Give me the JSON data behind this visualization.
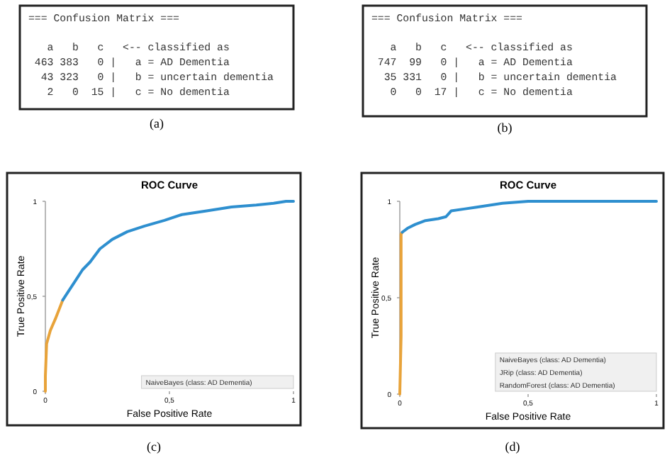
{
  "chart_data": [
    {
      "type": "other",
      "annotations": [
        "=== Confusion Matrix ===",
        "   a   b   c   <-- classified as",
        " 463 383   0 |   a = AD Dementia",
        "  43 323   0 |   b = uncertain dementia",
        "   2   0  15 |   c = No dementia"
      ],
      "subtitle": "(a)"
    },
    {
      "type": "other",
      "annotations": [
        "=== Confusion Matrix ===",
        "   a   b   c   <-- classified as",
        " 747  99   0 |   a = AD Dementia",
        "  35 331   0 |   b = uncertain dementia",
        "   0   0  17 |   c = No dementia"
      ],
      "subtitle": "(b)"
    },
    {
      "type": "line",
      "title": "ROC Curve",
      "subtitle": "(c)",
      "xlabel": "False Positive Rate",
      "ylabel": "True Positive Rate",
      "xlim": [
        0,
        1
      ],
      "ylim": [
        0,
        1
      ],
      "xticks": [
        {
          "value": 0,
          "label": "0"
        },
        {
          "value": 0.5,
          "label": "0,5"
        },
        {
          "value": 1,
          "label": "1"
        }
      ],
      "yticks": [
        {
          "value": 0,
          "label": "0"
        },
        {
          "value": 0.5,
          "label": "0,5"
        },
        {
          "value": 1,
          "label": "1"
        }
      ],
      "annotations": [
        "NaiveBayes (class: AD Dementia)"
      ],
      "series": [
        {
          "color": "#e8a33a",
          "x": [
            0,
            0,
            0.005,
            0.02,
            0.04,
            0.07
          ],
          "values": [
            0,
            0.08,
            0.25,
            0.32,
            0.38,
            0.48
          ]
        },
        {
          "color": "#2e8fcf",
          "x": [
            0.07,
            0.09,
            0.12,
            0.15,
            0.18,
            0.22,
            0.27,
            0.33,
            0.4,
            0.48,
            0.55,
            0.65,
            0.75,
            0.85,
            0.92,
            0.97,
            1
          ],
          "values": [
            0.48,
            0.52,
            0.58,
            0.64,
            0.68,
            0.75,
            0.8,
            0.84,
            0.87,
            0.9,
            0.93,
            0.95,
            0.97,
            0.98,
            0.99,
            1,
            1
          ]
        }
      ]
    },
    {
      "type": "line",
      "title": "ROC Curve",
      "subtitle": "(d)",
      "xlabel": "False Positive Rate",
      "ylabel": "True Positive Rate",
      "xlim": [
        0,
        1
      ],
      "ylim": [
        0,
        1
      ],
      "xticks": [
        0,
        {
          "value": 0.5,
          "label": "0,5"
        },
        1
      ],
      "yticks": [
        0,
        {
          "value": 0.5,
          "label": "0,5"
        },
        1
      ],
      "annotations": [
        "NaiveBayes (class: AD Dementia)",
        "JRip (class: AD Dementia)",
        "RandomForest (class: AD Dementia)"
      ],
      "series": [
        {
          "color": "#e8a33a",
          "x": [
            0,
            0.005,
            0.005,
            0.01
          ],
          "values": [
            0,
            0.3,
            0.83,
            0.84
          ]
        },
        {
          "color": "#2e8fcf",
          "x": [
            0.01,
            0.03,
            0.06,
            0.1,
            0.15,
            0.18,
            0.2,
            0.25,
            0.3,
            0.4,
            0.5,
            1
          ],
          "values": [
            0.84,
            0.86,
            0.88,
            0.9,
            0.91,
            0.92,
            0.95,
            0.96,
            0.97,
            0.99,
            1,
            1
          ]
        }
      ]
    }
  ]
}
